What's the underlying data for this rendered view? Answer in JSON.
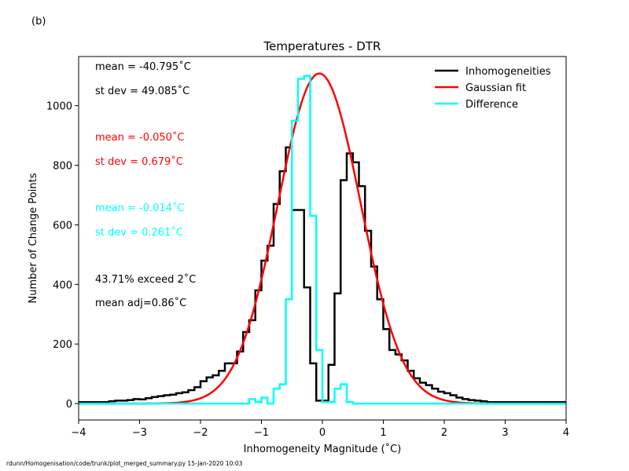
{
  "panel_label": "(b)",
  "footer": "rdunn/Homogenisation/code/trunk/plot_merged_summary.py   15-Jan-2020 10:03",
  "chart_data": {
    "type": "step-histogram",
    "title": "Temperatures - DTR",
    "xlabel": "Inhomogeneity Magnitude (˚C)",
    "ylabel": "Number of Change Points",
    "xlim": [
      -4,
      4
    ],
    "ylim": [
      -55,
      1165
    ],
    "xticks": [
      -4,
      -3,
      -2,
      -1,
      0,
      1,
      2,
      3,
      4
    ],
    "xtick_labels": [
      "−4",
      "−3",
      "−2",
      "−1",
      "0",
      "1",
      "2",
      "3",
      "4"
    ],
    "yticks": [
      0,
      200,
      400,
      600,
      800,
      1000
    ],
    "ytick_labels": [
      "0",
      "200",
      "400",
      "600",
      "800",
      "1000"
    ],
    "grid": false,
    "legend_position": "top-right",
    "annotations": [
      {
        "text": "mean = -40.795˚C",
        "color": "#000000"
      },
      {
        "text": "st dev = 49.085˚C",
        "color": "#000000"
      },
      {
        "text": "mean = -0.050˚C",
        "color": "#ff0000"
      },
      {
        "text": "st dev =  0.679˚C",
        "color": "#ff0000"
      },
      {
        "text": "mean = -0.014˚C",
        "color": "#00ffff"
      },
      {
        "text": "st dev =  0.261˚C",
        "color": "#00ffff"
      },
      {
        "text": "43.71% exceed 2˚C",
        "color": "#000000"
      },
      {
        "text": "mean adj=0.86˚C",
        "color": "#000000"
      }
    ],
    "bin_edges": [
      -4.0,
      -3.9,
      -3.8,
      -3.7,
      -3.6,
      -3.5,
      -3.4,
      -3.3,
      -3.2,
      -3.1,
      -3.0,
      -2.9,
      -2.8,
      -2.7,
      -2.6,
      -2.5,
      -2.4,
      -2.3,
      -2.2,
      -2.1,
      -2.0,
      -1.9,
      -1.8,
      -1.7,
      -1.6,
      -1.5,
      -1.4,
      -1.3,
      -1.2,
      -1.1,
      -1.0,
      -0.9,
      -0.8,
      -0.7,
      -0.6,
      -0.5,
      -0.4,
      -0.3,
      -0.2,
      -0.1,
      0.0,
      0.1,
      0.2,
      0.3,
      0.4,
      0.5,
      0.6,
      0.7,
      0.8,
      0.9,
      1.0,
      1.1,
      1.2,
      1.3,
      1.4,
      1.5,
      1.6,
      1.7,
      1.8,
      1.9,
      2.0,
      2.1,
      2.2,
      2.3,
      2.4,
      2.5,
      2.6,
      2.7,
      2.8,
      2.9,
      3.0,
      3.1,
      3.2,
      3.3,
      3.4,
      3.5,
      3.6,
      3.7,
      3.8,
      3.9,
      4.0
    ],
    "series": [
      {
        "name": "Inhomogeneities",
        "color": "#000000",
        "style": "step",
        "values": [
          5,
          5,
          5,
          5,
          5,
          8,
          10,
          10,
          12,
          15,
          14,
          18,
          22,
          25,
          28,
          30,
          35,
          38,
          45,
          55,
          75,
          88,
          95,
          110,
          135,
          135,
          175,
          240,
          280,
          380,
          480,
          530,
          670,
          780,
          860,
          650,
          650,
          390,
          135,
          10,
          10,
          130,
          370,
          750,
          840,
          810,
          730,
          580,
          460,
          350,
          250,
          180,
          165,
          145,
          110,
          85,
          70,
          62,
          50,
          40,
          35,
          28,
          20,
          15,
          12,
          10,
          8,
          5,
          5,
          5,
          5,
          5,
          5,
          5,
          5,
          5,
          5,
          5,
          5,
          5
        ]
      },
      {
        "name": "Gaussian fit",
        "color": "#ff0000",
        "style": "line",
        "amplitude": 1108,
        "mean": -0.05,
        "stdev": 0.679
      },
      {
        "name": "Difference",
        "color": "#00ffff",
        "style": "step",
        "values": [
          0,
          0,
          0,
          0,
          0,
          0,
          0,
          0,
          0,
          0,
          0,
          0,
          0,
          0,
          0,
          0,
          0,
          0,
          0,
          0,
          0,
          0,
          0,
          0,
          0,
          0,
          0,
          0,
          15,
          5,
          20,
          0,
          50,
          65,
          350,
          950,
          1090,
          1100,
          630,
          180,
          5,
          5,
          50,
          65,
          5,
          0,
          0,
          0,
          0,
          0,
          0,
          0,
          0,
          0,
          0,
          0,
          0,
          0,
          0,
          0,
          0,
          0,
          0,
          0,
          0,
          0,
          0,
          0,
          0,
          0,
          0,
          0,
          0,
          0,
          0,
          0,
          0,
          0,
          0,
          0
        ]
      }
    ]
  }
}
